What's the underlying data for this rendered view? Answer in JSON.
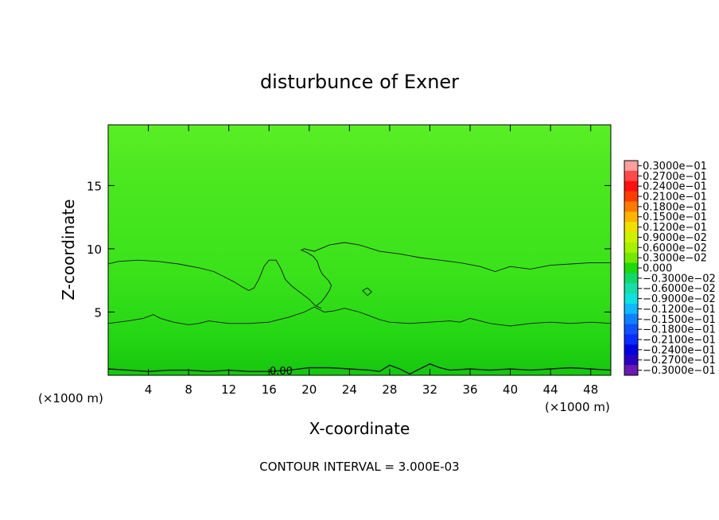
{
  "chart_data": {
    "type": "contour",
    "title": "disturbunce of Exner",
    "xlabel": "X-coordinate",
    "ylabel": "Z-coordinate",
    "x_unit_left": "(×1000 m)",
    "x_unit_right": "(×1000 m)",
    "xlim": [
      0,
      50
    ],
    "ylim": [
      0,
      19.8
    ],
    "x_ticks": [
      4,
      8,
      12,
      16,
      20,
      24,
      28,
      32,
      36,
      40,
      44,
      48
    ],
    "x_tick_labels": [
      "4",
      "8",
      "12",
      "16",
      "20",
      "24",
      "28",
      "32",
      "36",
      "40",
      "44",
      "48"
    ],
    "y_ticks": [
      5,
      10,
      15
    ],
    "y_tick_labels": [
      "5",
      "10",
      "15"
    ],
    "contour_interval_text": "CONTOUR INTERVAL = 3.000E-03",
    "contour_label": "0.00",
    "field_gradient": [
      {
        "z": 0.0,
        "color": "#15c60f"
      },
      {
        "z": 3.0,
        "color": "#24d613"
      },
      {
        "z": 8.0,
        "color": "#3ae21a"
      },
      {
        "z": 16.0,
        "color": "#4de820"
      },
      {
        "z": 19.8,
        "color": "#5aee24"
      }
    ],
    "contours": [
      {
        "level": "lower",
        "points": [
          [
            0,
            4.1
          ],
          [
            2,
            4.3
          ],
          [
            3.5,
            4.5
          ],
          [
            4.5,
            4.8
          ],
          [
            5.2,
            4.5
          ],
          [
            6.5,
            4.2
          ],
          [
            8,
            4.0
          ],
          [
            9,
            4.1
          ],
          [
            10,
            4.3
          ],
          [
            11,
            4.2
          ],
          [
            12,
            4.1
          ],
          [
            14,
            4.1
          ],
          [
            16,
            4.2
          ],
          [
            18,
            4.6
          ],
          [
            19.5,
            5.0
          ],
          [
            20.5,
            5.4
          ],
          [
            21.5,
            5.0
          ],
          [
            22.5,
            5.1
          ],
          [
            23.5,
            5.3
          ],
          [
            25,
            5.0
          ],
          [
            26,
            4.7
          ],
          [
            27,
            4.4
          ],
          [
            28,
            4.2
          ],
          [
            30,
            4.1
          ],
          [
            32,
            4.2
          ],
          [
            34,
            4.3
          ],
          [
            35,
            4.2
          ],
          [
            36,
            4.5
          ],
          [
            37,
            4.3
          ],
          [
            38,
            4.1
          ],
          [
            40,
            3.9
          ],
          [
            42,
            4.1
          ],
          [
            44,
            4.2
          ],
          [
            46,
            4.1
          ],
          [
            48,
            4.2
          ],
          [
            50,
            4.1
          ]
        ]
      },
      {
        "level": "upper-left",
        "points": [
          [
            0,
            8.8
          ],
          [
            1,
            9.0
          ],
          [
            3,
            9.1
          ],
          [
            5,
            9.0
          ],
          [
            7,
            8.8
          ],
          [
            9,
            8.5
          ],
          [
            10.5,
            8.2
          ],
          [
            11.5,
            7.8
          ],
          [
            12.5,
            7.4
          ],
          [
            13.3,
            7.0
          ],
          [
            14,
            6.7
          ],
          [
            14.5,
            6.9
          ],
          [
            15,
            7.6
          ],
          [
            15.5,
            8.6
          ],
          [
            16,
            9.1
          ],
          [
            16.7,
            9.1
          ],
          [
            17.2,
            8.4
          ],
          [
            17.6,
            7.6
          ],
          [
            18.2,
            7.1
          ],
          [
            19,
            6.6
          ],
          [
            20,
            6.0
          ],
          [
            20.6,
            5.5
          ],
          [
            21.2,
            5.3
          ]
        ]
      },
      {
        "level": "upper-right",
        "points": [
          [
            50,
            8.9
          ],
          [
            48,
            8.9
          ],
          [
            46,
            8.8
          ],
          [
            44,
            8.7
          ],
          [
            42,
            8.4
          ],
          [
            40,
            8.6
          ],
          [
            38.5,
            8.2
          ],
          [
            37,
            8.6
          ],
          [
            35,
            8.9
          ],
          [
            33,
            9.1
          ],
          [
            31,
            9.3
          ],
          [
            29,
            9.6
          ],
          [
            27,
            9.8
          ],
          [
            25,
            10.3
          ],
          [
            23.5,
            10.5
          ],
          [
            22,
            10.3
          ],
          [
            20.5,
            9.8
          ],
          [
            19.5,
            10.0
          ],
          [
            19.2,
            9.9
          ],
          [
            19.8,
            9.7
          ],
          [
            20.4,
            9.4
          ],
          [
            20.8,
            9.0
          ],
          [
            21.0,
            8.5
          ],
          [
            21.3,
            8.0
          ],
          [
            21.9,
            7.5
          ],
          [
            22.2,
            7.1
          ],
          [
            22.0,
            6.7
          ],
          [
            21.6,
            6.2
          ],
          [
            21.2,
            5.8
          ],
          [
            20.7,
            5.5
          ]
        ]
      },
      {
        "level": "small-loop",
        "points": [
          [
            25.3,
            6.7
          ],
          [
            25.8,
            6.9
          ],
          [
            26.2,
            6.6
          ],
          [
            25.8,
            6.3
          ],
          [
            25.3,
            6.7
          ]
        ]
      },
      {
        "level": "zero",
        "points": [
          [
            0,
            0.5
          ],
          [
            2,
            0.4
          ],
          [
            4,
            0.3
          ],
          [
            6,
            0.4
          ],
          [
            8,
            0.4
          ],
          [
            10,
            0.3
          ],
          [
            12,
            0.4
          ],
          [
            14,
            0.3
          ],
          [
            16,
            0.3
          ],
          [
            18,
            0.4
          ],
          [
            20,
            0.6
          ],
          [
            22,
            0.6
          ],
          [
            24,
            0.5
          ],
          [
            26,
            0.4
          ],
          [
            27,
            0.3
          ],
          [
            28,
            0.8
          ],
          [
            29,
            0.5
          ],
          [
            30,
            0.1
          ],
          [
            31,
            0.5
          ],
          [
            32,
            0.9
          ],
          [
            33,
            0.6
          ],
          [
            34,
            0.4
          ],
          [
            36,
            0.5
          ],
          [
            38,
            0.4
          ],
          [
            40,
            0.5
          ],
          [
            42,
            0.4
          ],
          [
            44,
            0.5
          ],
          [
            46,
            0.6
          ],
          [
            48,
            0.5
          ],
          [
            50,
            0.4
          ]
        ]
      }
    ],
    "colorbar": {
      "labels": [
        "0.3000e−01",
        "0.2700e−01",
        "0.2400e−01",
        "0.2100e−01",
        "0.1800e−01",
        "0.1500e−01",
        "0.1200e−01",
        "0.9000e−02",
        "0.6000e−02",
        "0.3000e−02",
        "0.000",
        "−0.3000e−02",
        "−0.6000e−02",
        "−0.9000e−02",
        "−0.1200e−01",
        "−0.1500e−01",
        "−0.1800e−01",
        "−0.2100e−01",
        "−0.2400e−01",
        "−0.2700e−01",
        "−0.3000e−01"
      ],
      "colors": [
        "#ff9e9e",
        "#ff4a4a",
        "#ff1010",
        "#ff3c00",
        "#ff7a00",
        "#ffb400",
        "#f0e000",
        "#ccf200",
        "#a8f000",
        "#74e800",
        "#1fd80e",
        "#12d86a",
        "#18dcaa",
        "#10e0e0",
        "#10b8ff",
        "#1080ff",
        "#1050ff",
        "#0a2cff",
        "#0000e0",
        "#2a00c0",
        "#6a1ab0"
      ]
    }
  }
}
